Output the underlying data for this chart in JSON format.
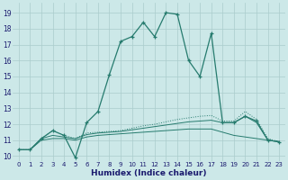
{
  "xlabel": "Humidex (Indice chaleur)",
  "xlim": [
    -0.5,
    23.5
  ],
  "ylim": [
    9.7,
    19.6
  ],
  "xticks": [
    0,
    1,
    2,
    3,
    4,
    5,
    6,
    7,
    8,
    9,
    10,
    11,
    12,
    13,
    14,
    15,
    16,
    17,
    18,
    19,
    20,
    21,
    22,
    23
  ],
  "yticks": [
    10,
    11,
    12,
    13,
    14,
    15,
    16,
    17,
    18,
    19
  ],
  "bg_color": "#cce8e8",
  "grid_color": "#aacccc",
  "line_color": "#267b6e",
  "line1_x": [
    0,
    1,
    2,
    3,
    4,
    5,
    6,
    7,
    8,
    9,
    10,
    11,
    12,
    13,
    14,
    15,
    16,
    17,
    18,
    19,
    20,
    21,
    22,
    23
  ],
  "line1_y": [
    10.4,
    10.4,
    11.1,
    11.6,
    11.3,
    9.9,
    12.1,
    12.8,
    15.1,
    17.2,
    17.5,
    18.4,
    17.5,
    19.0,
    18.9,
    16.0,
    15.0,
    17.7,
    12.1,
    12.1,
    12.5,
    12.2,
    11.0,
    10.9
  ],
  "line2_x": [
    0,
    1,
    2,
    3,
    4,
    5,
    6,
    7,
    8,
    9,
    10,
    11,
    12,
    13,
    14,
    15,
    16,
    17,
    18,
    19,
    20,
    21,
    22,
    23
  ],
  "line2_y": [
    10.4,
    10.4,
    11.1,
    11.6,
    11.3,
    11.1,
    11.45,
    11.5,
    11.55,
    11.6,
    11.75,
    11.9,
    12.0,
    12.15,
    12.3,
    12.4,
    12.5,
    12.55,
    12.2,
    12.2,
    12.8,
    12.3,
    11.1,
    10.9
  ],
  "line3_x": [
    0,
    1,
    2,
    3,
    4,
    5,
    6,
    7,
    8,
    9,
    10,
    11,
    12,
    13,
    14,
    15,
    16,
    17,
    18,
    19,
    20,
    21,
    22,
    23
  ],
  "line3_y": [
    10.4,
    10.4,
    11.1,
    11.3,
    11.2,
    11.1,
    11.35,
    11.45,
    11.5,
    11.55,
    11.65,
    11.75,
    11.85,
    11.95,
    12.05,
    12.15,
    12.2,
    12.25,
    12.1,
    12.1,
    12.5,
    12.1,
    11.0,
    10.9
  ],
  "line4_x": [
    0,
    1,
    2,
    3,
    4,
    5,
    6,
    7,
    8,
    9,
    10,
    11,
    12,
    13,
    14,
    15,
    16,
    17,
    18,
    19,
    20,
    21,
    22,
    23
  ],
  "line4_y": [
    10.4,
    10.4,
    11.0,
    11.1,
    11.1,
    11.0,
    11.2,
    11.3,
    11.35,
    11.4,
    11.45,
    11.5,
    11.55,
    11.6,
    11.65,
    11.7,
    11.7,
    11.7,
    11.5,
    11.3,
    11.2,
    11.1,
    11.0,
    10.9
  ]
}
